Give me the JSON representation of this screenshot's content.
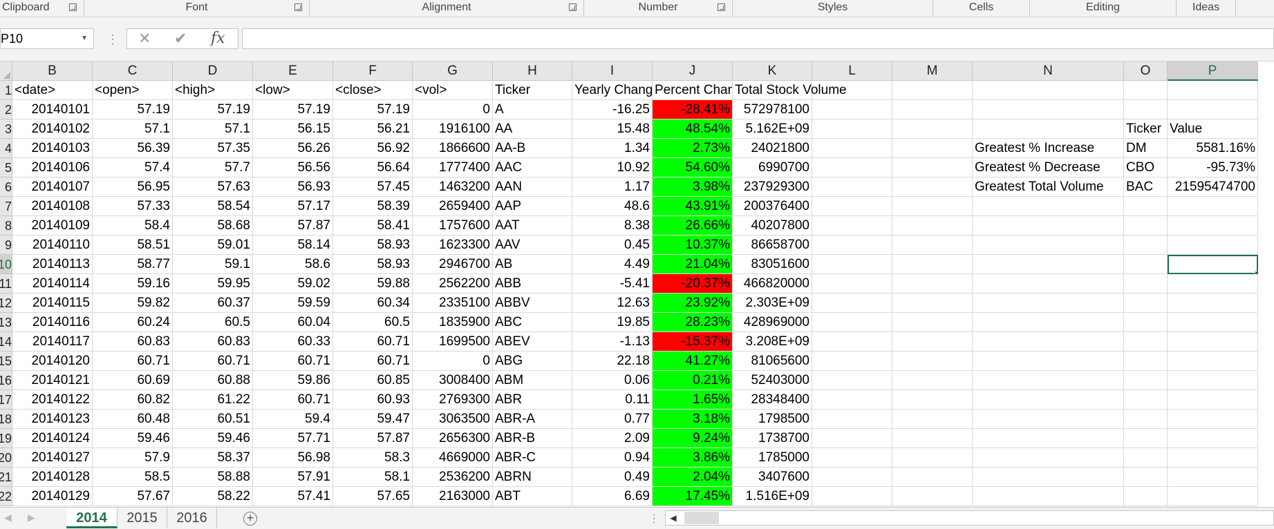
{
  "ribbon": {
    "groups": [
      "Clipboard",
      "Font",
      "Alignment",
      "Number",
      "Styles",
      "Cells",
      "Editing",
      "Ideas"
    ]
  },
  "formula_bar": {
    "name_box": "P10",
    "cancel_icon": "close-icon",
    "enter_icon": "check-icon",
    "function_label": "fx",
    "formula": ""
  },
  "columns": [
    "B",
    "C",
    "D",
    "E",
    "F",
    "G",
    "H",
    "I",
    "J",
    "K",
    "L",
    "M",
    "N",
    "O",
    "P"
  ],
  "selected_column": "P",
  "row_numbers": [
    "1",
    "2",
    "3",
    "4",
    "5",
    "6",
    "7",
    "8",
    "9",
    "10",
    "11",
    "12",
    "13",
    "14",
    "15",
    "16",
    "17",
    "18",
    "19",
    "20",
    "21",
    "22"
  ],
  "selected_row": "10",
  "headers": {
    "B": "<date>",
    "C": "<open>",
    "D": "<high>",
    "E": "<low>",
    "F": "<close>",
    "G": "<vol>",
    "H": "Ticker",
    "I": "Yearly Change",
    "J": "Percent Change",
    "K": "Total Stock Volume"
  },
  "data_rows": [
    [
      "20140101",
      "57.19",
      "57.19",
      "57.19",
      "57.19",
      "0",
      "A",
      "-16.25",
      "-28.41%",
      "572978100"
    ],
    [
      "20140102",
      "57.1",
      "57.1",
      "56.15",
      "56.21",
      "1916100",
      "AA",
      "15.48",
      "48.54%",
      "5.162E+09"
    ],
    [
      "20140103",
      "56.39",
      "57.35",
      "56.26",
      "56.92",
      "1866600",
      "AA-B",
      "1.34",
      "2.73%",
      "24021800"
    ],
    [
      "20140106",
      "57.4",
      "57.7",
      "56.56",
      "56.64",
      "1777400",
      "AAC",
      "10.92",
      "54.60%",
      "6990700"
    ],
    [
      "20140107",
      "56.95",
      "57.63",
      "56.93",
      "57.45",
      "1463200",
      "AAN",
      "1.17",
      "3.98%",
      "237929300"
    ],
    [
      "20140108",
      "57.33",
      "58.54",
      "57.17",
      "58.39",
      "2659400",
      "AAP",
      "48.6",
      "43.91%",
      "200376400"
    ],
    [
      "20140109",
      "58.4",
      "58.68",
      "57.87",
      "58.41",
      "1757600",
      "AAT",
      "8.38",
      "26.66%",
      "40207800"
    ],
    [
      "20140110",
      "58.51",
      "59.01",
      "58.14",
      "58.93",
      "1623300",
      "AAV",
      "0.45",
      "10.37%",
      "86658700"
    ],
    [
      "20140113",
      "58.77",
      "59.1",
      "58.6",
      "58.93",
      "2946700",
      "AB",
      "4.49",
      "21.04%",
      "83051600"
    ],
    [
      "20140114",
      "59.16",
      "59.95",
      "59.02",
      "59.88",
      "2562200",
      "ABB",
      "-5.41",
      "-20.37%",
      "466820000"
    ],
    [
      "20140115",
      "59.82",
      "60.37",
      "59.59",
      "60.34",
      "2335100",
      "ABBV",
      "12.63",
      "23.92%",
      "2.303E+09"
    ],
    [
      "20140116",
      "60.24",
      "60.5",
      "60.04",
      "60.5",
      "1835900",
      "ABC",
      "19.85",
      "28.23%",
      "428969000"
    ],
    [
      "20140117",
      "60.83",
      "60.83",
      "60.33",
      "60.71",
      "1699500",
      "ABEV",
      "-1.13",
      "-15.37%",
      "3.208E+09"
    ],
    [
      "20140120",
      "60.71",
      "60.71",
      "60.71",
      "60.71",
      "0",
      "ABG",
      "22.18",
      "41.27%",
      "81065600"
    ],
    [
      "20140121",
      "60.69",
      "60.88",
      "59.86",
      "60.85",
      "3008400",
      "ABM",
      "0.06",
      "0.21%",
      "52403000"
    ],
    [
      "20140122",
      "60.82",
      "61.22",
      "60.71",
      "60.93",
      "2769300",
      "ABR",
      "0.11",
      "1.65%",
      "28348400"
    ],
    [
      "20140123",
      "60.48",
      "60.51",
      "59.4",
      "59.47",
      "3063500",
      "ABR-A",
      "0.77",
      "3.18%",
      "1798500"
    ],
    [
      "20140124",
      "59.46",
      "59.46",
      "57.71",
      "57.87",
      "2656300",
      "ABR-B",
      "2.09",
      "9.24%",
      "1738700"
    ],
    [
      "20140127",
      "57.9",
      "58.37",
      "56.98",
      "58.3",
      "4669000",
      "ABR-C",
      "0.94",
      "3.86%",
      "1785000"
    ],
    [
      "20140128",
      "58.5",
      "58.88",
      "57.91",
      "58.1",
      "2536200",
      "ABRN",
      "0.49",
      "2.04%",
      "3407600"
    ],
    [
      "20140129",
      "57.67",
      "58.22",
      "57.41",
      "57.65",
      "2163000",
      "ABT",
      "6.69",
      "17.45%",
      "1.516E+09"
    ]
  ],
  "summary": {
    "header_ticker": "Ticker",
    "header_value": "Value",
    "rows": [
      {
        "label": "Greatest % Increase",
        "ticker": "DM",
        "value": "5581.16%"
      },
      {
        "label": "Greatest % Decrease",
        "ticker": "CBO",
        "value": "-95.73%"
      },
      {
        "label": "Greatest Total Volume",
        "ticker": "BAC",
        "value": "21595474700"
      }
    ]
  },
  "colors": {
    "positive_fill": "#00ff00",
    "negative_fill": "#ff0000",
    "accent": "#217346"
  },
  "sheet_tabs": [
    "2014",
    "2015",
    "2016"
  ],
  "active_sheet": "2014",
  "add_sheet_icon": "plus-circle-icon"
}
